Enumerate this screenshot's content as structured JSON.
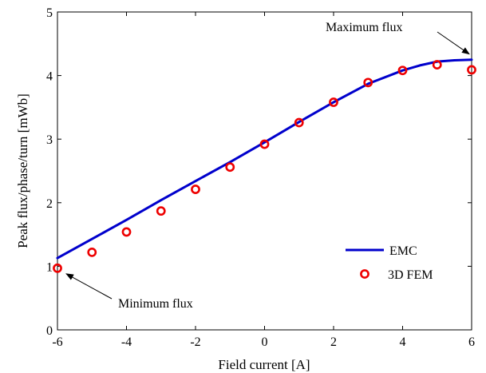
{
  "chart_data": {
    "type": "line",
    "title": "",
    "xlabel": "Field current [A]",
    "ylabel": "Peak flux/phase/turn [mWb]",
    "xlim": [
      -6,
      6
    ],
    "ylim": [
      0,
      5
    ],
    "x_ticks": [
      -6,
      -4,
      -2,
      0,
      2,
      4,
      6
    ],
    "y_ticks": [
      0,
      1,
      2,
      3,
      4,
      5
    ],
    "grid": false,
    "legend_position": "bottom-right",
    "series": [
      {
        "name": "EMC",
        "kind": "line",
        "color": "#0000cc",
        "x": [
          -6,
          -5,
          -4,
          -3,
          -2,
          -1,
          0,
          1,
          2,
          3,
          4,
          4.5,
          5,
          5.5,
          6
        ],
        "y": [
          1.13,
          1.43,
          1.73,
          2.04,
          2.34,
          2.64,
          2.95,
          3.27,
          3.58,
          3.87,
          4.08,
          4.16,
          4.22,
          4.24,
          4.25
        ]
      },
      {
        "name": "3D FEM",
        "kind": "scatter",
        "color": "#ee0000",
        "x": [
          -6,
          -5,
          -4,
          -3,
          -2,
          -1,
          0,
          1,
          2,
          3,
          4,
          5,
          6
        ],
        "y": [
          0.97,
          1.22,
          1.54,
          1.87,
          2.21,
          2.56,
          2.92,
          3.26,
          3.58,
          3.89,
          4.08,
          4.17,
          4.09
        ]
      }
    ],
    "annotations": [
      {
        "text": "Maximum flux",
        "x": 6,
        "y": 4.25
      },
      {
        "text": "Minimum flux",
        "x": -6,
        "y": 0.97
      }
    ]
  }
}
